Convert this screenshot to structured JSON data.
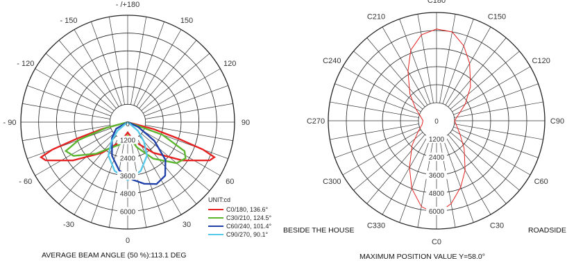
{
  "chart_data": [
    {
      "type": "polar",
      "ring_labels": [
        "1200",
        "2400",
        "3600",
        "4800",
        "6000"
      ],
      "ring_values": [
        1200,
        2400,
        3600,
        4800,
        6000
      ],
      "rmax": 7200,
      "angle_labels": [
        {
          "deg": 0,
          "text": "0"
        },
        {
          "deg": 30,
          "text": "30"
        },
        {
          "deg": 60,
          "text": "60"
        },
        {
          "deg": 90,
          "text": "90"
        },
        {
          "deg": 120,
          "text": "120"
        },
        {
          "deg": 150,
          "text": "150"
        },
        {
          "deg": 180,
          "text": "- /+180"
        },
        {
          "deg": -30,
          "text": "-30"
        },
        {
          "deg": -60,
          "text": "- 60"
        },
        {
          "deg": -90,
          "text": "- 90"
        },
        {
          "deg": -120,
          "text": "- 120"
        },
        {
          "deg": -150,
          "text": "- 150"
        }
      ],
      "center_label": "0",
      "unit": "UNIT:cd",
      "series": [
        {
          "name": "C0/180, 136.6°",
          "color": "#e62020",
          "points": [
            [
              -80,
              20
            ],
            [
              -75,
              1800
            ],
            [
              -72,
              3600
            ],
            [
              -70,
              5400
            ],
            [
              -68,
              6300
            ],
            [
              -65,
              6100
            ],
            [
              -55,
              4500
            ],
            [
              -40,
              2700
            ],
            [
              -20,
              1400
            ],
            [
              0,
              700
            ],
            [
              20,
              1400
            ],
            [
              40,
              2700
            ],
            [
              55,
              4500
            ],
            [
              65,
              6100
            ],
            [
              68,
              6300
            ],
            [
              70,
              5400
            ],
            [
              72,
              3600
            ],
            [
              75,
              1800
            ],
            [
              80,
              20
            ]
          ]
        },
        {
          "name": "C30/210, 124.5°",
          "color": "#5bb52f",
          "points": [
            [
              -80,
              20
            ],
            [
              -75,
              1500
            ],
            [
              -70,
              3500
            ],
            [
              -65,
              4600
            ],
            [
              -58,
              4300
            ],
            [
              -45,
              3000
            ],
            [
              -20,
              1600
            ],
            [
              0,
              900
            ],
            [
              20,
              1800
            ],
            [
              35,
              3000
            ],
            [
              50,
              4300
            ],
            [
              58,
              4600
            ],
            [
              63,
              4300
            ],
            [
              70,
              2500
            ],
            [
              78,
              20
            ]
          ]
        },
        {
          "name": "C60/240, 101.4°",
          "color": "#1f3fa8",
          "points": [
            [
              -70,
              20
            ],
            [
              -60,
              900
            ],
            [
              -45,
              1500
            ],
            [
              -25,
              2500
            ],
            [
              -10,
              3300
            ],
            [
              5,
              3900
            ],
            [
              15,
              4300
            ],
            [
              25,
              4600
            ],
            [
              35,
              4400
            ],
            [
              45,
              3600
            ],
            [
              55,
              2200
            ],
            [
              65,
              800
            ],
            [
              70,
              20
            ]
          ]
        },
        {
          "name": "C90/270, 90.1°",
          "color": "#56c8e8",
          "points": [
            [
              -60,
              20
            ],
            [
              -50,
              900
            ],
            [
              -40,
              1700
            ],
            [
              -30,
              2600
            ],
            [
              -15,
              3400
            ],
            [
              0,
              3900
            ],
            [
              15,
              3400
            ],
            [
              30,
              2600
            ],
            [
              40,
              1700
            ],
            [
              50,
              900
            ],
            [
              60,
              20
            ]
          ]
        }
      ],
      "caption": "AVERAGE BEAM ANGLE (50 %):113.1 DEG"
    },
    {
      "type": "polar",
      "ring_labels": [
        "1200",
        "2400",
        "3600",
        "4800",
        "6000"
      ],
      "ring_values": [
        1200,
        2400,
        3600,
        4800,
        6000
      ],
      "rmax": 7200,
      "angle_labels": [
        {
          "deg": 0,
          "text": "C0"
        },
        {
          "deg": 30,
          "text": "C30"
        },
        {
          "deg": 60,
          "text": "C60"
        },
        {
          "deg": 90,
          "text": "C90"
        },
        {
          "deg": 120,
          "text": "C120"
        },
        {
          "deg": 150,
          "text": "C150"
        },
        {
          "deg": 180,
          "text": "C180"
        },
        {
          "deg": -150,
          "text": "C210"
        },
        {
          "deg": -120,
          "text": "C240"
        },
        {
          "deg": -90,
          "text": "C270"
        },
        {
          "deg": -60,
          "text": "C300"
        },
        {
          "deg": -30,
          "text": "C330"
        }
      ],
      "center_label": "0",
      "series": [
        {
          "name": "",
          "color": "#e62020",
          "points": [
            [
              0,
              6200
            ],
            [
              10,
              5600
            ],
            [
              20,
              4700
            ],
            [
              30,
              3800
            ],
            [
              45,
              2600
            ],
            [
              60,
              1800
            ],
            [
              75,
              1400
            ],
            [
              90,
              1200
            ],
            [
              105,
              1500
            ],
            [
              120,
              2200
            ],
            [
              135,
              3200
            ],
            [
              150,
              4400
            ],
            [
              160,
              5300
            ],
            [
              170,
              6000
            ],
            [
              180,
              6100
            ],
            [
              190,
              5800
            ],
            [
              200,
              5000
            ],
            [
              210,
              3800
            ],
            [
              225,
              2500
            ],
            [
              240,
              1600
            ],
            [
              255,
              1100
            ],
            [
              270,
              900
            ],
            [
              285,
              1000
            ],
            [
              300,
              1400
            ],
            [
              315,
              2300
            ],
            [
              330,
              3600
            ],
            [
              340,
              4800
            ],
            [
              350,
              5800
            ],
            [
              360,
              6200
            ]
          ]
        }
      ],
      "left_note": "BESIDE THE HOUSE",
      "right_note": "ROADSIDE",
      "caption": "MAXIMUM POSITION VALUE Y=58.0°"
    }
  ]
}
